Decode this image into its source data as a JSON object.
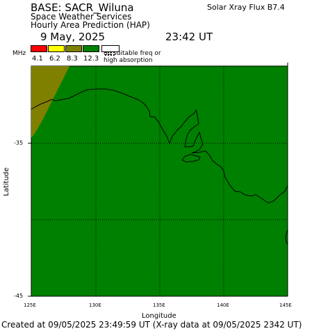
{
  "header": {
    "base": "BASE: SACR_Wiluna",
    "xray_flux": "Solar Xray Flux B7.4",
    "service": "Space Weather Services",
    "product": "Hourly Area Prediction (HAP)",
    "date": "9 May, 2025",
    "time": "23:42 UT"
  },
  "legend": {
    "unit": "MHz",
    "bands": [
      {
        "label": "4.1",
        "color": "#ff0000"
      },
      {
        "label": "6.2",
        "color": "#ffff00"
      },
      {
        "label": "8.3",
        "color": "#808000"
      },
      {
        "label": "12.3",
        "color": "#008000"
      }
    ],
    "no_freq_line1": "no suitable freq or",
    "no_freq_line2": "high absorption"
  },
  "map": {
    "ocean_color": "#008000",
    "band_color": "#808000",
    "lat_ticks": [
      "-35",
      "-45"
    ],
    "lon_ticks": [
      "125E",
      "130E",
      "135E",
      "140E",
      "145E"
    ],
    "ylabel": "Latitude",
    "xlabel": "Longitude"
  },
  "footer": "Created at 09/05/2025 23:49:59 UT (X-ray data at 09/05/2025 2342 UT)"
}
